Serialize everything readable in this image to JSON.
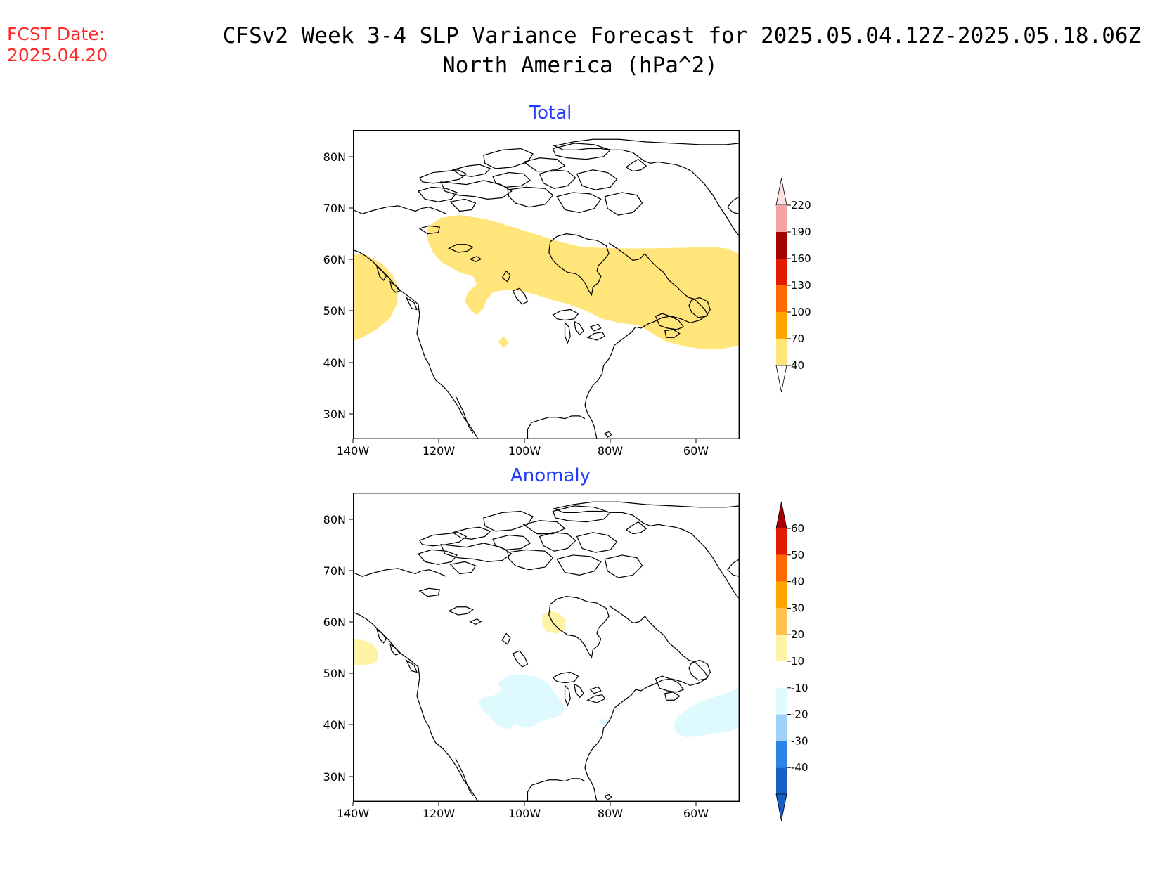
{
  "header": {
    "fcst_label": "FCST Date:",
    "fcst_date": "2025.04.20",
    "title_line1": "CFSv2 Week 3-4 SLP Variance Forecast for 2025.05.04.12Z-2025.05.18.06Z",
    "title_line2": "North America (hPa^2)"
  },
  "axes": {
    "lat_ticks": [
      "80N",
      "70N",
      "60N",
      "50N",
      "40N",
      "30N"
    ],
    "lon_ticks": [
      "140W",
      "120W",
      "100W",
      "80W",
      "60W"
    ]
  },
  "panels": [
    {
      "title": "Total",
      "colorbar": {
        "labels": [
          "220",
          "190",
          "160",
          "130",
          "100",
          "70",
          "40"
        ],
        "colors": [
          "#fde0e0",
          "#f4a4a4",
          "#a50000",
          "#e21a00",
          "#ff6a00",
          "#ffa500",
          "#ffe57a"
        ],
        "shaded": [
          "#ffe57a"
        ]
      }
    },
    {
      "title": "Anomaly",
      "colorbar": {
        "labels": [
          "60",
          "50",
          "40",
          "30",
          "20",
          "10",
          "-10",
          "-20",
          "-30",
          "-40"
        ],
        "colors": [
          "#a50000",
          "#e21a00",
          "#ff6a00",
          "#ffa500",
          "#ffc34d",
          "#fff3a6",
          "#ffffff",
          "#dffaff",
          "#9ed0f8",
          "#2a83e8",
          "#1860c8"
        ],
        "shaded": [
          "#fff3a6",
          "#dffaff"
        ]
      }
    }
  ]
}
